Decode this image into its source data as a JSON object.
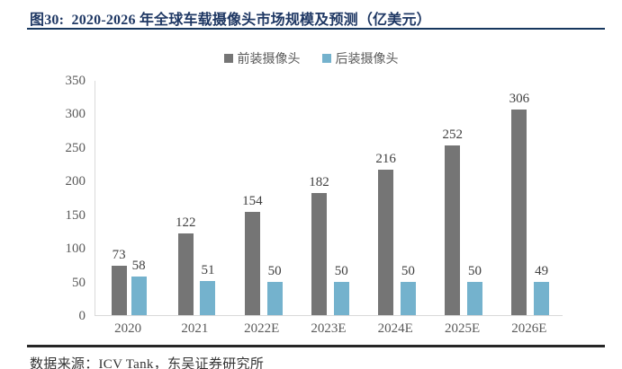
{
  "title": {
    "text": "图30:  2020-2026 年全球车载摄像头市场规模及预测（亿美元）"
  },
  "source": {
    "text": "数据来源：ICV Tank，东吴证券研究所"
  },
  "chart_data": {
    "type": "bar",
    "title": "2020-2026 年全球车载摄像头市场规模及预测（亿美元）",
    "categories": [
      "2020",
      "2021",
      "2022E",
      "2023E",
      "2024E",
      "2025E",
      "2026E"
    ],
    "series": [
      {
        "name": "前装摄像头",
        "color": "#757575",
        "values": [
          73,
          122,
          154,
          182,
          216,
          252,
          306
        ]
      },
      {
        "name": "后装摄像头",
        "color": "#74b2cd",
        "values": [
          58,
          51,
          50,
          50,
          50,
          50,
          49
        ]
      }
    ],
    "xlabel": "",
    "ylabel": "",
    "ylim": [
      0,
      350
    ],
    "y_ticks": [
      0,
      50,
      100,
      150,
      200,
      250,
      300,
      350
    ],
    "grid": false,
    "legend_position": "top-center",
    "value_labels": true
  },
  "colors": {
    "title_text": "#1f3864",
    "axis_text": "#595959",
    "value_label": "#404040",
    "axis_line": "#d9d9d9",
    "title_rule": "#17375e",
    "bottom_rule": "#262626"
  }
}
